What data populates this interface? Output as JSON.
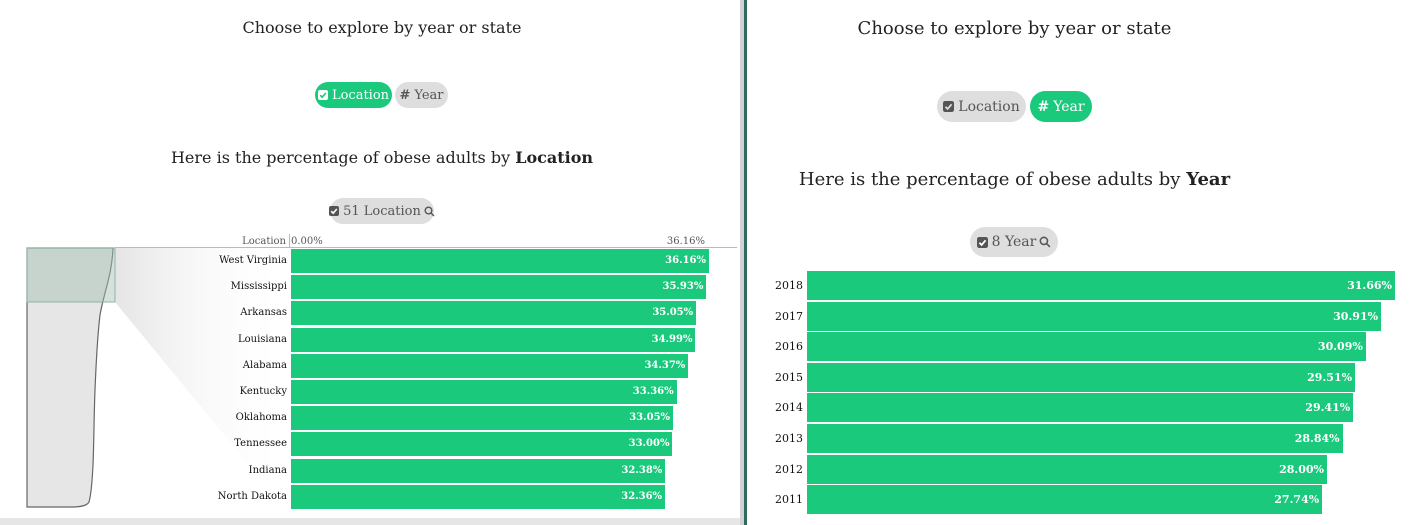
{
  "colors": {
    "accent": "#1ac97c",
    "inactive_pill": "#dedede"
  },
  "left": {
    "title": "Choose to explore by year or state",
    "toggle": {
      "location": {
        "label": "Location",
        "icon": "checkbox-icon",
        "active": true
      },
      "year": {
        "label": "Year",
        "icon": "hash-icon",
        "active": false
      }
    },
    "subtitle_prefix": "Here is the percentage of obese adults by",
    "subtitle_bold": "Location",
    "filter": {
      "label": "51 Location",
      "icon": "search-icon"
    },
    "header": {
      "category": "Location",
      "min": "0.00%",
      "max": "36.16%"
    }
  },
  "right": {
    "title": "Choose to explore by year or state",
    "toggle": {
      "location": {
        "label": "Location",
        "icon": "checkbox-icon",
        "active": false
      },
      "year": {
        "label": "Year",
        "icon": "hash-icon",
        "active": true
      }
    },
    "subtitle_prefix": "Here is the percentage of obese adults by",
    "subtitle_bold": "Year",
    "filter": {
      "label": "8 Year",
      "icon": "search-icon"
    }
  },
  "chart_data": [
    {
      "type": "bar",
      "orientation": "horizontal",
      "title": "Here is the percentage of obese adults by Location",
      "categories": [
        "West Virginia",
        "Mississippi",
        "Arkansas",
        "Louisiana",
        "Alabama",
        "Kentucky",
        "Oklahoma",
        "Tennessee",
        "Indiana",
        "North Dakota"
      ],
      "values": [
        36.16,
        35.93,
        35.05,
        34.99,
        34.37,
        33.36,
        33.05,
        33.0,
        32.38,
        32.36
      ],
      "labels": [
        "36.16%",
        "35.93%",
        "35.05%",
        "34.99%",
        "34.37%",
        "33.36%",
        "33.05%",
        "33.00%",
        "32.38%",
        "32.36%"
      ],
      "xlim": [
        0,
        36.16
      ]
    },
    {
      "type": "bar",
      "orientation": "horizontal",
      "title": "Here is the percentage of obese adults by Year",
      "categories": [
        "2018",
        "2017",
        "2016",
        "2015",
        "2014",
        "2013",
        "2012",
        "2011"
      ],
      "values": [
        31.66,
        30.91,
        30.09,
        29.51,
        29.41,
        28.84,
        28.0,
        27.74
      ],
      "labels": [
        "31.66%",
        "30.91%",
        "30.09%",
        "29.51%",
        "29.41%",
        "28.84%",
        "28.00%",
        "27.74%"
      ],
      "xlim": [
        0,
        31.66
      ]
    }
  ]
}
